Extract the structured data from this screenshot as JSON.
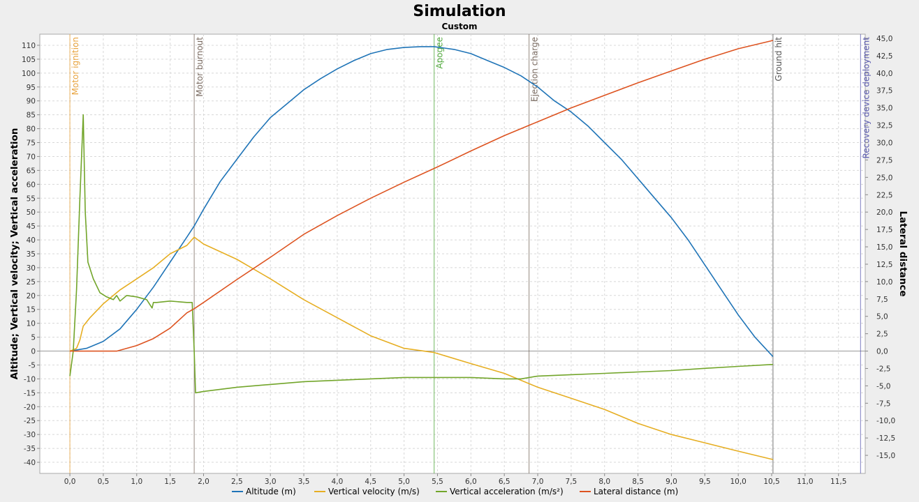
{
  "chart_data": {
    "type": "line",
    "title": "Simulation",
    "subtitle": "Custom",
    "xlabel": "",
    "ylabel": "Altitude; Vertical velocity; Vertical acceleration",
    "y2label": "Lateral distance",
    "xlim": [
      -0.45,
      11.9
    ],
    "ylim": [
      -44,
      114
    ],
    "y2lim": [
      -17.6,
      45.6
    ],
    "x_ticks": [
      "0,0",
      "0,5",
      "1,0",
      "1,5",
      "2,0",
      "2,5",
      "3,0",
      "3,5",
      "4,0",
      "4,5",
      "5,0",
      "5,5",
      "6,0",
      "6,5",
      "7,0",
      "7,5",
      "8,0",
      "8,5",
      "9,0",
      "9,5",
      "10,0",
      "10,5",
      "11,0",
      "11,5"
    ],
    "y_ticks": [
      "-40",
      "-35",
      "-30",
      "-25",
      "-20",
      "-15",
      "-10",
      "-5",
      "0",
      "5",
      "10",
      "15",
      "20",
      "25",
      "30",
      "35",
      "40",
      "45",
      "50",
      "55",
      "60",
      "65",
      "70",
      "75",
      "80",
      "85",
      "90",
      "95",
      "100",
      "105",
      "110"
    ],
    "y2_ticks": [
      "-15,0",
      "-12,5",
      "-10,0",
      "-7,5",
      "-5,0",
      "-2,5",
      "0,0",
      "2,5",
      "5,0",
      "7,5",
      "10,0",
      "12,5",
      "15,0",
      "17,5",
      "20,0",
      "22,5",
      "25,0",
      "27,5",
      "30,0",
      "32,5",
      "35,0",
      "37,5",
      "40,0",
      "42,5",
      "45,0"
    ],
    "grid": true,
    "legend_position": "bottom",
    "events": [
      {
        "label": "Motor ignition",
        "x": 0.0,
        "color": "#e8a33d"
      },
      {
        "label": "Motor burnout",
        "x": 1.86,
        "color": "#7a6b61"
      },
      {
        "label": "Apogee",
        "x": 5.45,
        "color": "#4fa83a"
      },
      {
        "label": "Ejection charge",
        "x": 6.87,
        "color": "#7a6b61"
      },
      {
        "label": "Ground hit",
        "x": 10.52,
        "color": "#555555"
      },
      {
        "label": "Recovery device deployment",
        "x": 11.83,
        "color": "#5b5bb0"
      }
    ],
    "series": [
      {
        "name": "Altitude (m)",
        "axis": "left",
        "color": "#1f74b7",
        "x": [
          0,
          0.25,
          0.5,
          0.75,
          1.0,
          1.25,
          1.5,
          1.75,
          1.86,
          2.0,
          2.25,
          2.5,
          2.75,
          3.0,
          3.25,
          3.5,
          3.75,
          4.0,
          4.25,
          4.5,
          4.75,
          5.0,
          5.25,
          5.45,
          5.75,
          6.0,
          6.25,
          6.5,
          6.75,
          7.0,
          7.25,
          7.5,
          7.75,
          8.0,
          8.25,
          8.5,
          8.75,
          9.0,
          9.25,
          9.5,
          9.75,
          10.0,
          10.25,
          10.52
        ],
        "y": [
          0,
          1,
          3.5,
          8,
          15,
          23,
          32,
          41,
          45,
          51,
          61,
          69,
          77,
          84,
          89,
          94,
          98,
          101.5,
          104.5,
          107,
          108.5,
          109.2,
          109.5,
          109.5,
          108.5,
          107,
          104.5,
          102,
          99,
          95,
          90,
          86,
          81,
          75,
          69,
          62,
          55,
          48,
          40,
          31,
          22,
          13,
          5,
          -2
        ]
      },
      {
        "name": "Vertical velocity (m/s)",
        "axis": "left",
        "color": "#e6ae22",
        "x": [
          0,
          0.1,
          0.15,
          0.2,
          0.3,
          0.5,
          0.75,
          1.0,
          1.25,
          1.5,
          1.75,
          1.86,
          2.0,
          2.5,
          3.0,
          3.5,
          4.0,
          4.5,
          5.0,
          5.45,
          6.0,
          6.5,
          7.0,
          7.5,
          8.0,
          8.5,
          9.0,
          9.5,
          10.0,
          10.52
        ],
        "y": [
          0,
          1,
          4,
          9,
          12,
          17,
          22,
          26,
          30,
          35,
          38,
          41,
          38.5,
          33,
          26,
          18.5,
          12,
          5.5,
          1,
          -0.5,
          -4.5,
          -8,
          -13,
          -17,
          -21,
          -26,
          -30,
          -33,
          -36,
          -39
        ]
      },
      {
        "name": "Vertical acceleration (m/s²)",
        "axis": "left",
        "color": "#72a52a",
        "x": [
          0,
          0.05,
          0.1,
          0.15,
          0.2,
          0.23,
          0.27,
          0.35,
          0.45,
          0.55,
          0.65,
          0.7,
          0.75,
          0.85,
          1.0,
          1.15,
          1.23,
          1.25,
          1.3,
          1.5,
          1.75,
          1.83,
          1.86,
          1.88,
          2.0,
          2.5,
          3.0,
          3.5,
          4.0,
          4.5,
          5.0,
          5.5,
          6.0,
          6.5,
          6.75,
          7.0,
          7.5,
          8.0,
          8.5,
          9.0,
          9.5,
          10.0,
          10.52
        ],
        "y": [
          -9,
          0,
          22,
          55,
          85,
          50,
          32,
          26,
          21,
          19.5,
          18.5,
          20,
          18,
          20,
          19.5,
          18.5,
          15.5,
          17.5,
          17.5,
          18,
          17.5,
          17.5,
          0,
          -15,
          -14.5,
          -13,
          -12,
          -11,
          -10.5,
          -10,
          -9.5,
          -9.5,
          -9.5,
          -10,
          -10,
          -9,
          -8.5,
          -8,
          -7.5,
          -7,
          -6.2,
          -5.5,
          -4.8
        ]
      },
      {
        "name": "Lateral distance (m)",
        "axis": "right",
        "color": "#dd5320",
        "x": [
          0,
          0.5,
          0.7,
          1.0,
          1.25,
          1.5,
          1.75,
          1.86,
          2.0,
          2.5,
          3.0,
          3.5,
          4.0,
          4.5,
          5.0,
          5.5,
          6.0,
          6.5,
          7.0,
          7.5,
          8.0,
          8.5,
          9.0,
          9.5,
          10.0,
          10.52
        ],
        "y": [
          0,
          0,
          0,
          0.8,
          1.8,
          3.3,
          5.5,
          6.1,
          7,
          10.3,
          13.5,
          16.8,
          19.5,
          22,
          24.3,
          26.5,
          28.8,
          31,
          33,
          35,
          36.8,
          38.6,
          40.3,
          42,
          43.5,
          44.7
        ]
      }
    ]
  }
}
